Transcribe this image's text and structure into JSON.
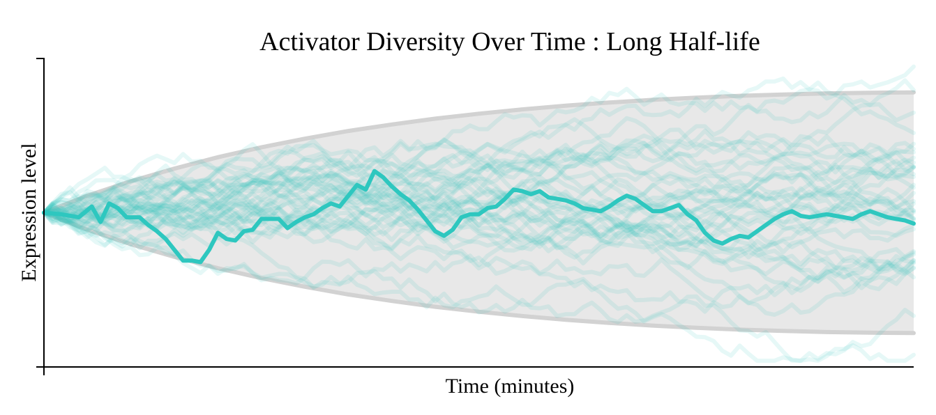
{
  "chart_data": {
    "type": "line",
    "title": "Activator Diversity Over Time : Long Half-life",
    "xlabel": "Time (minutes)",
    "ylabel": "Expression level",
    "xlim": [
      0,
      100
    ],
    "ylim": [
      -50,
      50
    ],
    "grid": false,
    "legend": "none",
    "tick_labels_shown": false,
    "colors": {
      "trajectory": "#2ec7bf",
      "envelope_edge": "#d2d2d2",
      "envelope_fill": "#e8e8e8",
      "axis": "#000000"
    },
    "envelope": {
      "description": "mean ± spread band",
      "x": [
        0,
        5,
        10,
        15,
        20,
        25,
        30,
        35,
        40,
        45,
        50,
        55,
        60,
        65,
        70,
        75,
        80,
        85,
        90,
        95,
        100
      ],
      "upper": [
        0,
        5.5,
        10.2,
        14.3,
        18.0,
        21.2,
        24.0,
        26.5,
        28.6,
        30.5,
        32.1,
        33.5,
        34.7,
        35.7,
        36.6,
        37.3,
        37.9,
        38.3,
        38.7,
        38.9,
        39.0
      ],
      "lower": [
        0,
        -5.5,
        -10.2,
        -14.3,
        -18.0,
        -21.2,
        -24.0,
        -26.5,
        -28.6,
        -30.5,
        -32.1,
        -33.5,
        -34.7,
        -35.7,
        -36.6,
        -37.3,
        -37.9,
        -38.3,
        -38.7,
        -38.9,
        -39.0
      ]
    },
    "highlighted_series": {
      "x": [
        0,
        2,
        4,
        5.5,
        6.5,
        7.5,
        8.5,
        9.5,
        11,
        12,
        13,
        14,
        15,
        16,
        17,
        18,
        19,
        20,
        21,
        22,
        23,
        24,
        25,
        26,
        27,
        28,
        29,
        30,
        31,
        32,
        33,
        34,
        35,
        36,
        37,
        38,
        39,
        40,
        41,
        42,
        43,
        44,
        45,
        46,
        47,
        48,
        49,
        50,
        51,
        52,
        53,
        54,
        55,
        56,
        57,
        58,
        59,
        60,
        61,
        62,
        63,
        64,
        65,
        66,
        67,
        68,
        69,
        70,
        71,
        72,
        73,
        74,
        75,
        76,
        77,
        78,
        79,
        80,
        81,
        82,
        83,
        84,
        85,
        86,
        87,
        88,
        89,
        90,
        91,
        92,
        93,
        94,
        95,
        96,
        97,
        98,
        99,
        100
      ],
      "y": [
        0,
        -0.5,
        -1.5,
        2,
        -3,
        3,
        1.5,
        -1.5,
        -1.5,
        -4,
        -6,
        -8.5,
        -12,
        -15.5,
        -15.5,
        -16,
        -12,
        -6.5,
        -8.5,
        -9,
        -6,
        -5.5,
        -2,
        -2,
        -2,
        -5,
        -3,
        -1.5,
        -0.5,
        1.5,
        3,
        2,
        5.5,
        9,
        7.5,
        13.5,
        11.5,
        8.5,
        6,
        4,
        1,
        -2.5,
        -6,
        -7.5,
        -5.5,
        -1.5,
        -0.5,
        -0.5,
        1.5,
        2,
        4.5,
        7.5,
        7,
        6,
        7,
        5,
        4.5,
        4,
        3,
        1.5,
        1,
        0.5,
        2,
        4,
        5.5,
        4.5,
        2.5,
        0.5,
        0.5,
        1.5,
        2.5,
        -0.5,
        -2.5,
        -6.5,
        -9,
        -10,
        -8.5,
        -7.5,
        -8,
        -6,
        -4,
        -2,
        -0.5,
        0.5,
        -1,
        -1.5,
        -1,
        -0.5,
        -1,
        -1.5,
        -2,
        -0.5,
        0.5,
        -0.5,
        -1.5,
        -2,
        -2.5,
        -3.5
      ]
    },
    "n_background_series": 40
  }
}
